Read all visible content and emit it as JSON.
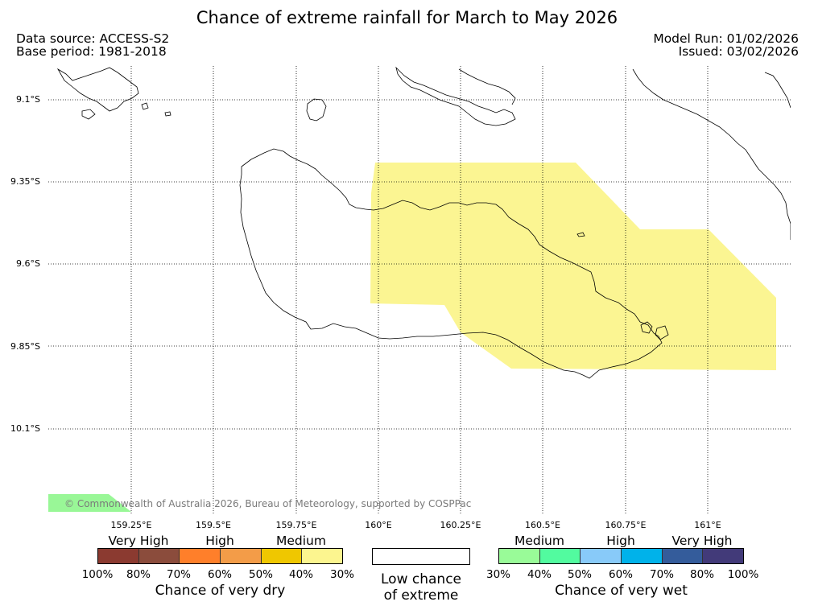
{
  "title": "Chance of extreme rainfall for March to May 2026",
  "meta": {
    "data_source": "Data source: ACCESS-S2",
    "base_period": "Base period: 1981-2018",
    "model_run": "Model Run: 01/02/2026",
    "issued": "Issued: 03/02/2026"
  },
  "map": {
    "lat_labels": [
      "9.1°S",
      "9.35°S",
      "9.6°S",
      "9.85°S",
      "10.1°S"
    ],
    "lon_labels": [
      "159.25°E",
      "159.5°E",
      "159.75°E",
      "160°E",
      "160.25°E",
      "160.5°E",
      "160.75°E",
      "161°E"
    ],
    "shading_color": "#fbf592",
    "corner_color": "#99f797",
    "copyright": "© Commonwealth of Australia 2026, Bureau of Meteorology, supported by COSPPac"
  },
  "legend": {
    "dry": {
      "categories": [
        "Very High",
        "High",
        "Medium"
      ],
      "colors": [
        "#8b3a30",
        "#8b4c3c",
        "#ff7f2a",
        "#f39c48",
        "#efc700",
        "#fcf58f"
      ],
      "ticks": [
        "100%",
        "80%",
        "70%",
        "60%",
        "50%",
        "40%",
        "30%"
      ],
      "label": "Chance of very dry"
    },
    "low": {
      "line1": "Low chance",
      "line2": "of extreme"
    },
    "wet": {
      "categories": [
        "Medium",
        "High",
        "Very High"
      ],
      "colors": [
        "#99fb98",
        "#52fb9f",
        "#88caf9",
        "#00b2ea",
        "#345c9b",
        "#423a79"
      ],
      "ticks": [
        "30%",
        "40%",
        "50%",
        "60%",
        "70%",
        "80%",
        "100%"
      ],
      "label": "Chance of very wet"
    }
  }
}
